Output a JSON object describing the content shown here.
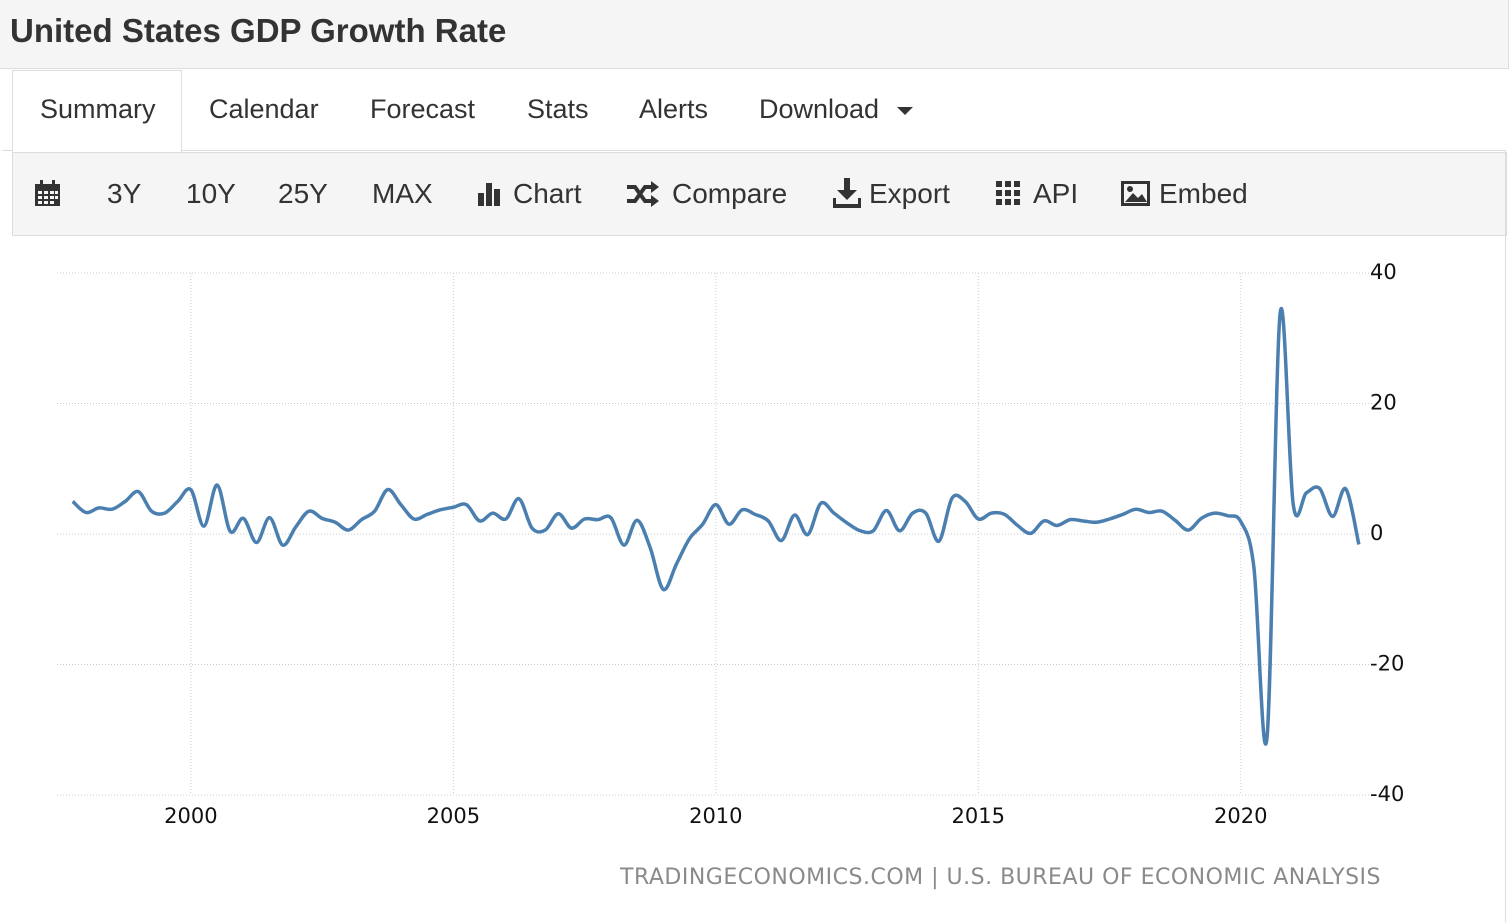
{
  "header": {
    "title": "United States GDP Growth Rate"
  },
  "tabs": [
    "Summary",
    "Calendar",
    "Forecast",
    "Stats",
    "Alerts",
    "Download"
  ],
  "toolbar": [
    "3Y",
    "10Y",
    "25Y",
    "MAX",
    "Chart",
    "Compare",
    "Export",
    "API",
    "Embed"
  ],
  "chart_data": {
    "type": "line",
    "x": [
      1997.75,
      1998.0,
      1998.25,
      1998.5,
      1998.75,
      1999.0,
      1999.25,
      1999.5,
      1999.75,
      2000.0,
      2000.25,
      2000.5,
      2000.75,
      2001.0,
      2001.25,
      2001.5,
      2001.75,
      2002.0,
      2002.25,
      2002.5,
      2002.75,
      2003.0,
      2003.25,
      2003.5,
      2003.75,
      2004.0,
      2004.25,
      2004.5,
      2004.75,
      2005.0,
      2005.25,
      2005.5,
      2005.75,
      2006.0,
      2006.25,
      2006.5,
      2006.75,
      2007.0,
      2007.25,
      2007.5,
      2007.75,
      2008.0,
      2008.25,
      2008.5,
      2008.75,
      2009.0,
      2009.25,
      2009.5,
      2009.75,
      2010.0,
      2010.25,
      2010.5,
      2010.75,
      2011.0,
      2011.25,
      2011.5,
      2011.75,
      2012.0,
      2012.25,
      2012.5,
      2012.75,
      2013.0,
      2013.25,
      2013.5,
      2013.75,
      2014.0,
      2014.25,
      2014.5,
      2014.75,
      2015.0,
      2015.25,
      2015.5,
      2015.75,
      2016.0,
      2016.25,
      2016.5,
      2016.75,
      2017.0,
      2017.25,
      2017.5,
      2017.75,
      2018.0,
      2018.25,
      2018.5,
      2018.75,
      2019.0,
      2019.25,
      2019.5,
      2019.75,
      2020.0,
      2020.25,
      2020.5,
      2020.75,
      2021.0,
      2021.25,
      2021.5,
      2021.75,
      2022.0,
      2022.25
    ],
    "series": [
      {
        "color": "#4a7fb0",
        "values": [
          5.0,
          3.3,
          4.0,
          3.8,
          5.0,
          6.5,
          3.5,
          3.2,
          5.0,
          6.8,
          1.2,
          7.5,
          0.4,
          2.4,
          -1.3,
          2.5,
          -1.7,
          1.1,
          3.5,
          2.4,
          1.8,
          0.6,
          2.2,
          3.5,
          6.8,
          4.5,
          2.3,
          3.0,
          3.7,
          4.1,
          4.5,
          2.0,
          3.2,
          2.3,
          5.4,
          0.9,
          0.6,
          3.1,
          0.9,
          2.3,
          2.2,
          2.5,
          -1.7,
          2.1,
          -2.1,
          -8.5,
          -4.6,
          -0.7,
          1.5,
          4.5,
          1.5,
          3.7,
          3.0,
          2.0,
          -1.0,
          2.9,
          -0.1,
          4.7,
          3.2,
          1.7,
          0.5,
          0.5,
          3.6,
          0.5,
          3.2,
          3.2,
          -1.1,
          5.5,
          5.0,
          2.3,
          3.2,
          3.0,
          1.3,
          0.1,
          2.0,
          1.3,
          2.2,
          2.0,
          1.8,
          2.3,
          3.0,
          3.8,
          3.3,
          3.5,
          2.1,
          0.6,
          2.4,
          3.2,
          2.8,
          1.9,
          -5.1,
          -31.2,
          33.8,
          4.5,
          6.3,
          7.0,
          2.7,
          6.9,
          -1.6
        ]
      }
    ],
    "xlim": [
      1997.45,
      2022.5
    ],
    "ylim": [
      -40,
      40
    ],
    "xticks": [
      2000,
      2005,
      2010,
      2015,
      2020
    ],
    "yticks": [
      -40,
      -20,
      0,
      20,
      40
    ],
    "grid": true,
    "source": "TRADINGECONOMICS.COM | U.S. BUREAU OF ECONOMIC ANALYSIS"
  }
}
